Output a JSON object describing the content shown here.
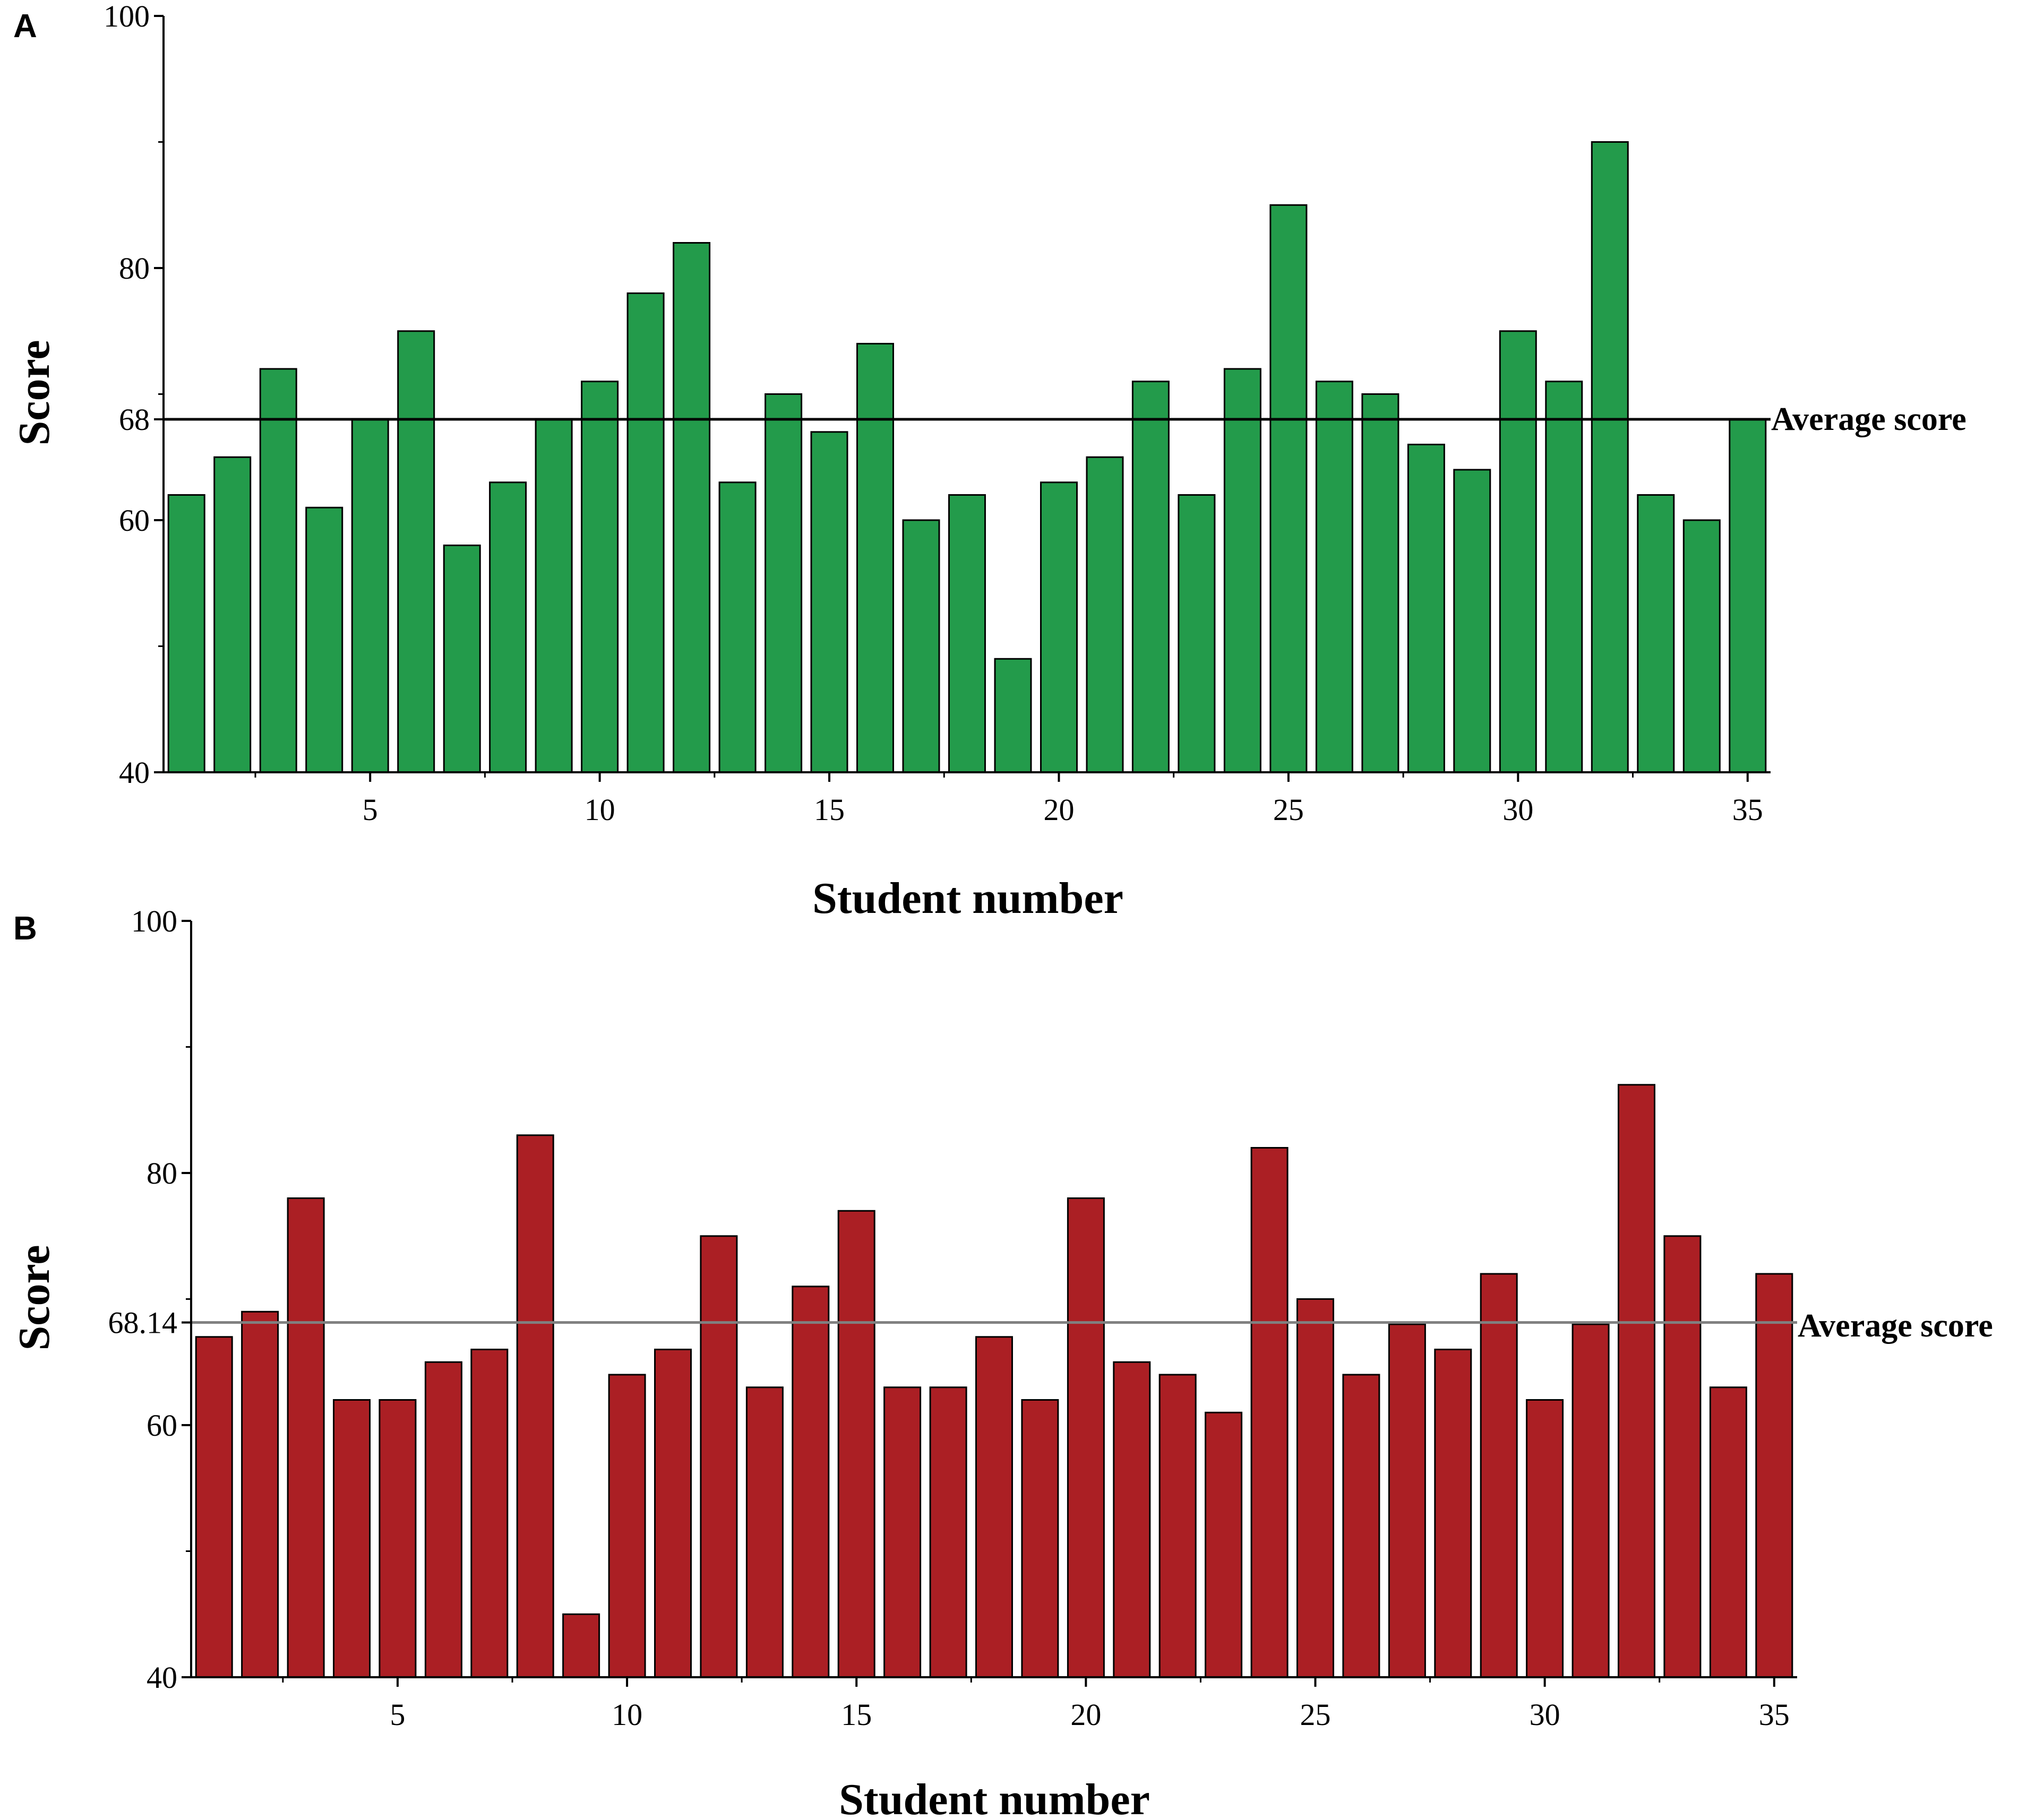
{
  "chart_data": [
    {
      "type": "bar",
      "panel": "A",
      "xlabel": "Student number",
      "ylabel": "Score",
      "ylim": [
        40,
        100
      ],
      "y_ticks": [
        40,
        60,
        68,
        80,
        100
      ],
      "x_ticks": [
        5,
        10,
        15,
        20,
        25,
        30,
        35
      ],
      "x": [
        1,
        2,
        3,
        4,
        5,
        6,
        7,
        8,
        9,
        10,
        11,
        12,
        13,
        14,
        15,
        16,
        17,
        18,
        19,
        20,
        21,
        22,
        23,
        24,
        25,
        26,
        27,
        28,
        29,
        30,
        31,
        32,
        33,
        34,
        35
      ],
      "values": [
        62,
        65,
        72,
        61,
        68,
        75,
        58,
        63,
        68,
        71,
        78,
        82,
        63,
        70,
        67,
        74,
        60,
        62,
        49,
        63,
        65,
        71,
        62,
        72,
        85,
        71,
        70,
        66,
        64,
        75,
        71,
        90,
        62,
        60,
        68
      ],
      "average": 68,
      "average_label": "Average score",
      "bar_color": "#239b4b",
      "grid": false
    },
    {
      "type": "bar",
      "panel": "B",
      "xlabel": "Student number",
      "ylabel": "Score",
      "ylim": [
        40,
        100
      ],
      "y_ticks": [
        40,
        60,
        68.14,
        80,
        100
      ],
      "x_ticks": [
        5,
        10,
        15,
        20,
        25,
        30,
        35
      ],
      "x": [
        1,
        2,
        3,
        4,
        5,
        6,
        7,
        8,
        9,
        10,
        11,
        12,
        13,
        14,
        15,
        16,
        17,
        18,
        19,
        20,
        21,
        22,
        23,
        24,
        25,
        26,
        27,
        28,
        29,
        30,
        31,
        32,
        33,
        34,
        35
      ],
      "values": [
        67,
        69,
        78,
        62,
        62,
        65,
        66,
        83,
        45,
        64,
        66,
        75,
        63,
        71,
        77,
        63,
        63,
        67,
        62,
        78,
        65,
        64,
        61,
        82,
        70,
        64,
        68,
        66,
        72,
        62,
        68,
        87,
        75,
        63,
        72
      ],
      "average": 68.14,
      "average_label": "Average score",
      "bar_color": "#ab1f24",
      "grid": false
    }
  ]
}
